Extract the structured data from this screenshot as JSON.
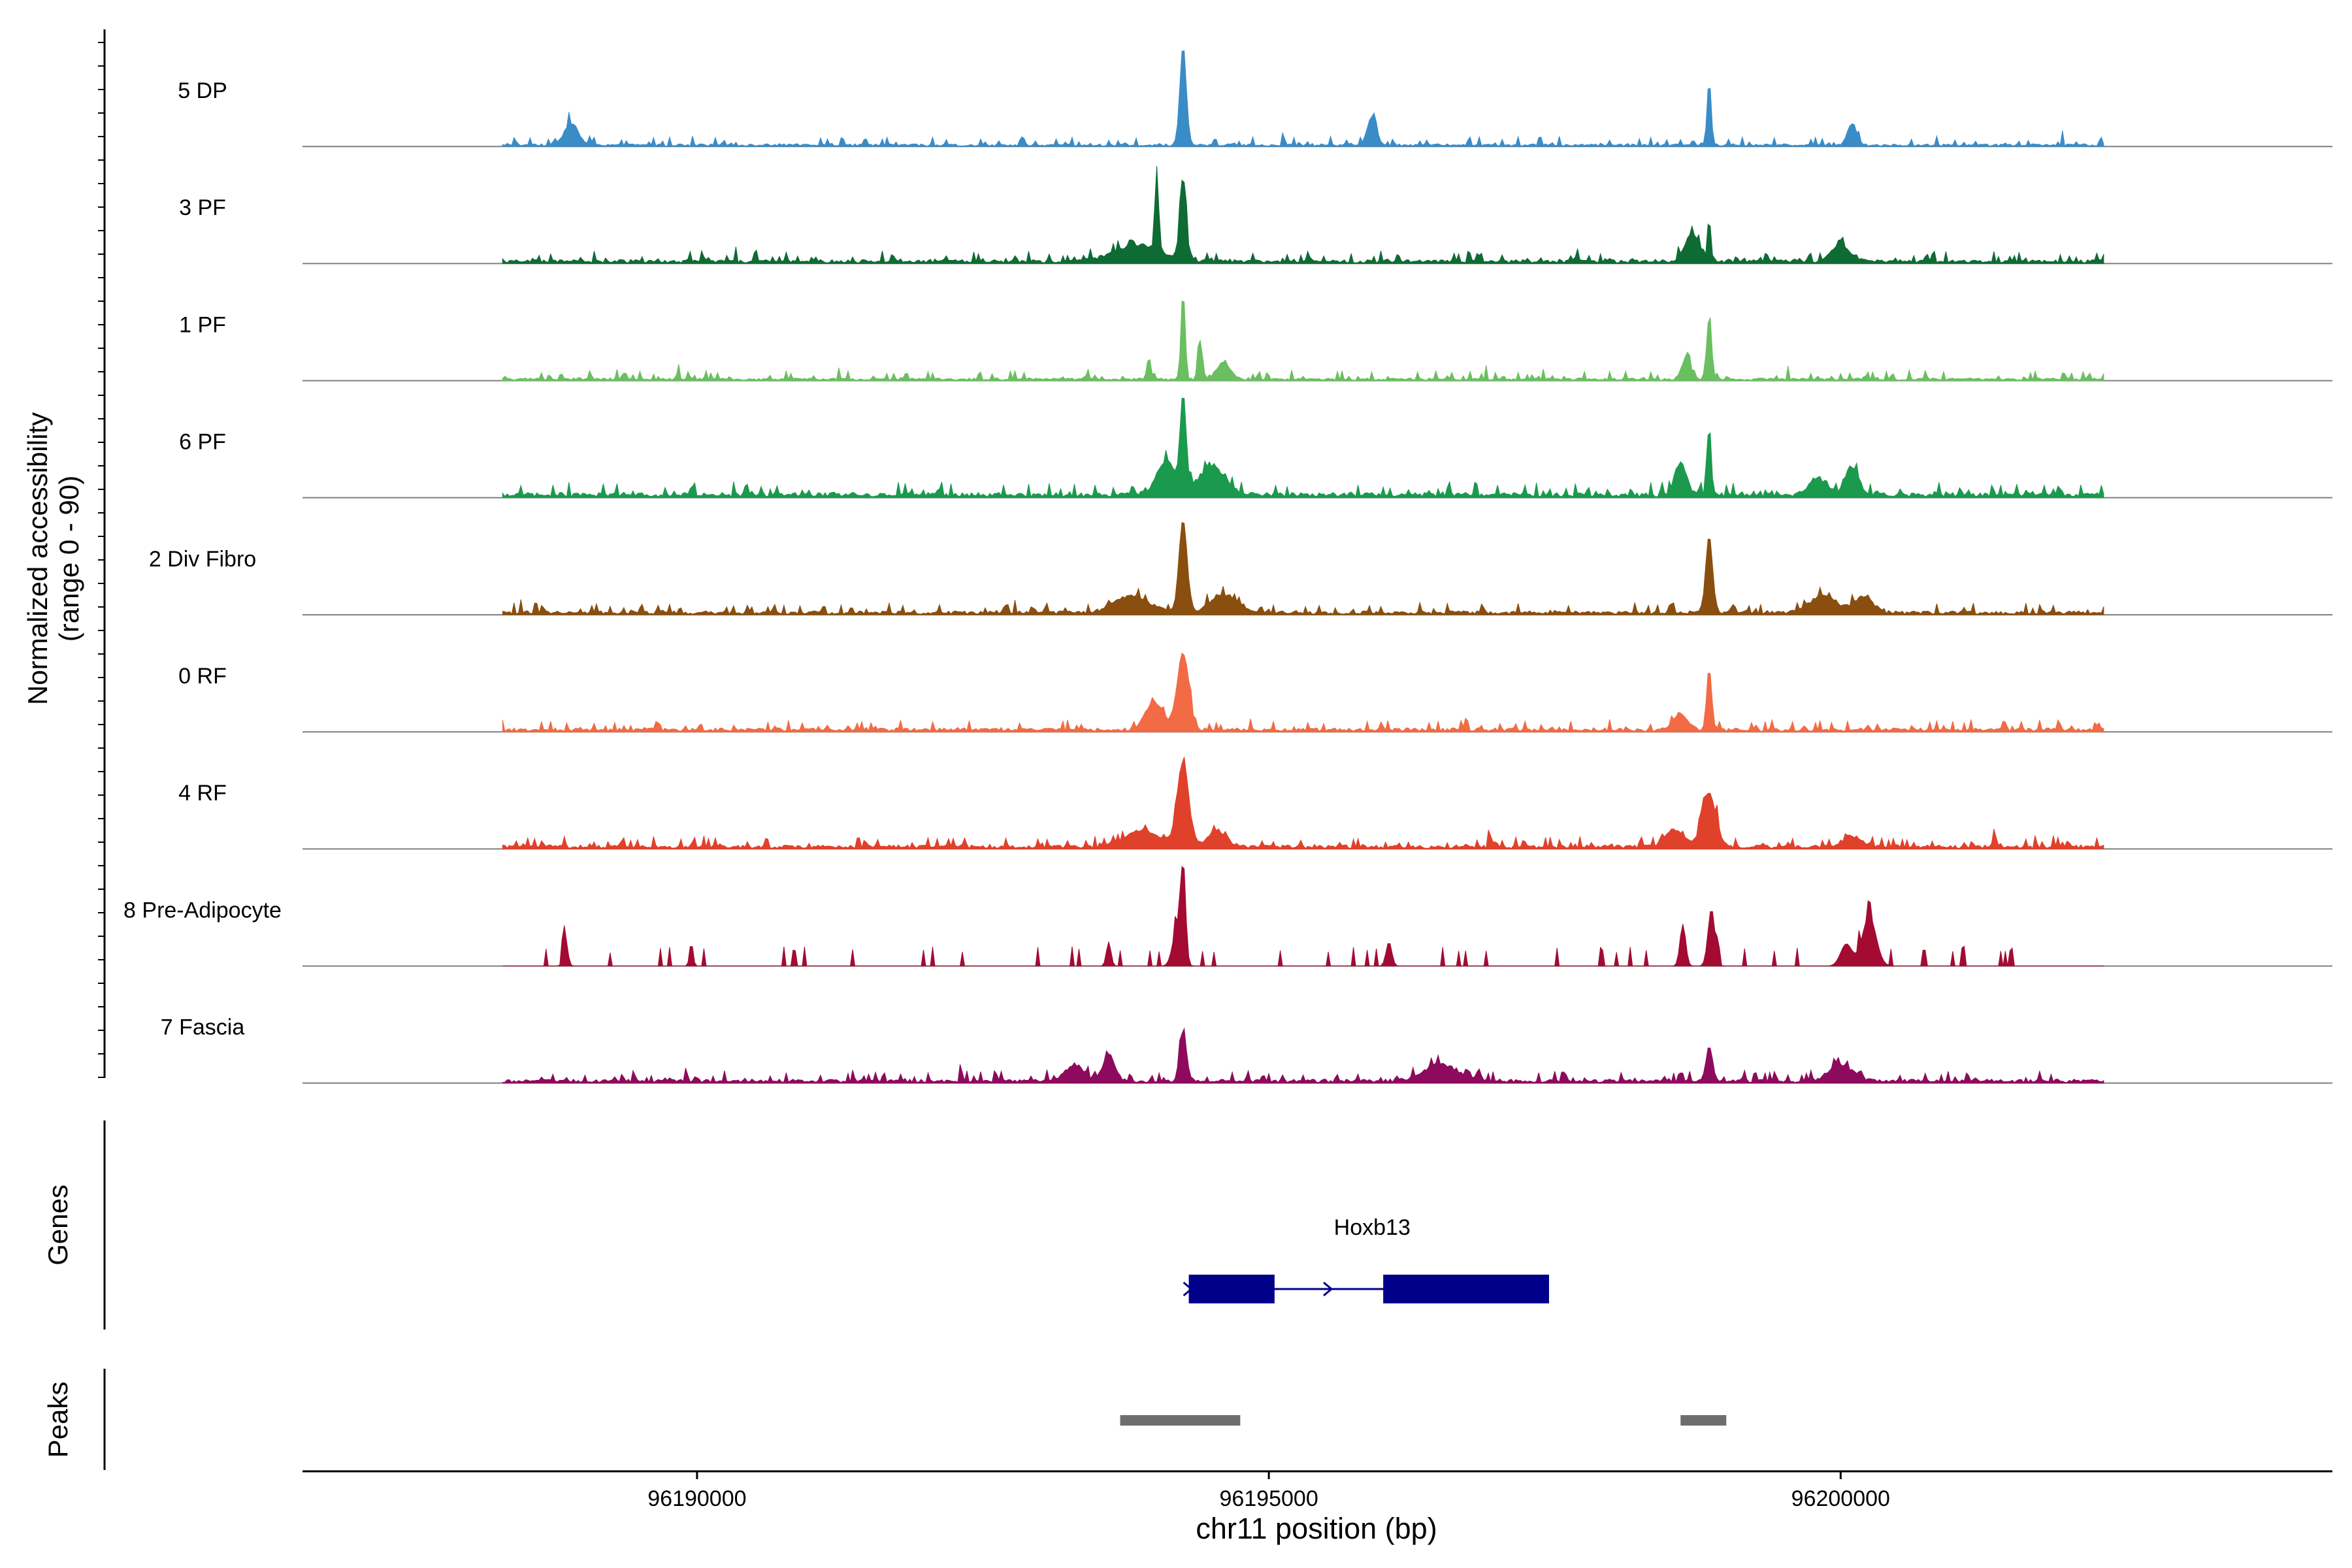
{
  "chart_data": {
    "type": "area",
    "y_axis_label_line1": "Normalized accessibility",
    "y_axis_label_line2": "(range 0 - 90)",
    "ylim": [
      0,
      90
    ],
    "x_axis_label": "chr11 position (bp)",
    "xlim": [
      96186550,
      96204300
    ],
    "x_ticks": [
      96190000,
      96195000,
      96200000
    ],
    "x_tick_labels": [
      "96190000",
      "96195000",
      "96200000"
    ],
    "track_extent": [
      96188300,
      96202300
    ],
    "tracks": [
      {
        "name": "5 DP",
        "color": "#3a8cc7",
        "style": "smooth",
        "base": 2,
        "noise": 2.5,
        "peaks": [
          [
            96194250,
            90,
            28
          ],
          [
            96198850,
            60,
            18
          ],
          [
            96188900,
            20,
            60
          ],
          [
            96195900,
            25,
            40
          ],
          [
            96200100,
            20,
            40
          ]
        ]
      },
      {
        "name": "3 PF",
        "color": "#0f6b34",
        "style": "smooth",
        "base": 3,
        "noise": 3,
        "peaks": [
          [
            96194250,
            75,
            28
          ],
          [
            96194020,
            75,
            16
          ],
          [
            96193850,
            15,
            200
          ],
          [
            96198850,
            45,
            12
          ],
          [
            96198700,
            25,
            60
          ],
          [
            96200000,
            15,
            80
          ]
        ]
      },
      {
        "name": "1 PF",
        "color": "#6abf60",
        "style": "smooth",
        "base": 2,
        "noise": 2.5,
        "peaks": [
          [
            96194250,
            82,
            18
          ],
          [
            96194400,
            35,
            20
          ],
          [
            96193950,
            20,
            18
          ],
          [
            96198850,
            55,
            22
          ],
          [
            96198650,
            20,
            40
          ],
          [
            96194600,
            15,
            60
          ]
        ]
      },
      {
        "name": "6 PF",
        "color": "#1b9a4e",
        "style": "smooth",
        "base": 4,
        "noise": 3.5,
        "peaks": [
          [
            96194250,
            88,
            26
          ],
          [
            96194100,
            30,
            80
          ],
          [
            96194500,
            25,
            120
          ],
          [
            96198850,
            65,
            18
          ],
          [
            96198600,
            30,
            50
          ],
          [
            96200100,
            25,
            60
          ],
          [
            96199800,
            15,
            80
          ]
        ]
      },
      {
        "name": "2 Div Fibro",
        "color": "#8a4e0e",
        "style": "smooth",
        "base": 3,
        "noise": 3,
        "peaks": [
          [
            96194250,
            85,
            35
          ],
          [
            96198850,
            70,
            30
          ],
          [
            96193800,
            15,
            150
          ],
          [
            96194600,
            15,
            120
          ],
          [
            96199850,
            15,
            120
          ],
          [
            96200200,
            15,
            80
          ]
        ]
      },
      {
        "name": "0 RF",
        "color": "#f26b45",
        "style": "smooth",
        "base": 3,
        "noise": 3,
        "peaks": [
          [
            96194250,
            70,
            50
          ],
          [
            96194000,
            25,
            80
          ],
          [
            96198850,
            55,
            22
          ],
          [
            96198600,
            15,
            60
          ]
        ]
      },
      {
        "name": "4 RF",
        "color": "#e0412a",
        "style": "smooth",
        "base": 3,
        "noise": 3,
        "peaks": [
          [
            96194250,
            75,
            50
          ],
          [
            96193900,
            15,
            150
          ],
          [
            96194550,
            15,
            80
          ],
          [
            96198850,
            48,
            60
          ],
          [
            96198550,
            15,
            80
          ],
          [
            96200100,
            10,
            80
          ]
        ]
      },
      {
        "name": "8 Pre-Adipocyte",
        "color": "#a30b33",
        "style": "blocky",
        "peaks": [
          [
            96194250,
            85,
            22
          ],
          [
            96194200,
            35,
            40
          ],
          [
            96198870,
            52,
            30
          ],
          [
            96198620,
            38,
            25
          ],
          [
            96200250,
            45,
            60
          ],
          [
            96200050,
            20,
            50
          ],
          [
            96188850,
            25,
            20
          ],
          [
            96189950,
            22,
            15
          ],
          [
            96193600,
            22,
            20
          ],
          [
            96196050,
            22,
            25
          ]
        ]
      },
      {
        "name": "7 Fascia",
        "color": "#8e0a5c",
        "style": "smooth",
        "base": 3,
        "noise": 3,
        "peaks": [
          [
            96194250,
            45,
            30
          ],
          [
            96193600,
            25,
            50
          ],
          [
            96193300,
            15,
            80
          ],
          [
            96198850,
            30,
            30
          ],
          [
            96196500,
            15,
            150
          ],
          [
            96200000,
            15,
            100
          ]
        ]
      }
    ],
    "genes_panel_label": "Genes",
    "genes": [
      {
        "name": "Hoxb13",
        "strand": "+",
        "start": 96194300,
        "end": 96197450,
        "exons": [
          [
            96194300,
            96195050
          ],
          [
            96196000,
            96197450
          ]
        ],
        "color": "#00008b"
      }
    ],
    "peaks_panel_label": "Peaks",
    "peak_regions": [
      [
        96193700,
        96194750
      ],
      [
        96198600,
        96199000
      ]
    ],
    "peak_color": "#6d6d6d"
  }
}
